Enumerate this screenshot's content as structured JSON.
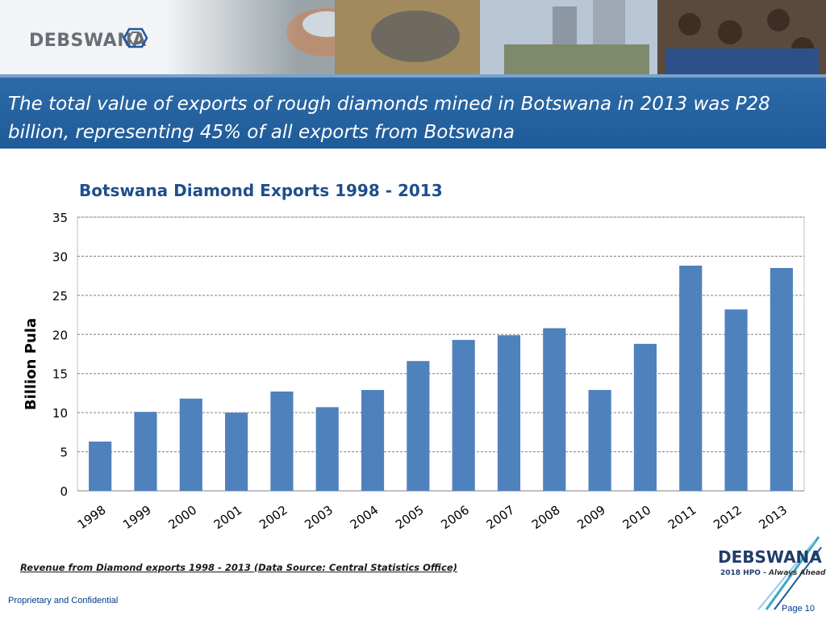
{
  "header": {
    "logo_text": "DEBSWANA"
  },
  "slide": {
    "title": "The total value of exports of rough diamonds mined in Botswana in 2013 was P28 billion, representing 45% of all exports from Botswana",
    "source_note": "Revenue from Diamond exports 1998 - 2013 (Data Source: Central Statistics Office)"
  },
  "footer": {
    "confidential": "Proprietary and Confidential",
    "page": "Page 10",
    "brand": "DEBSWANA",
    "brand_tagline": "2018 HPO - ",
    "brand_tagline_italic": "Always Ahead"
  },
  "colors": {
    "title_band": "#2563a5",
    "bar": "#4f81bd",
    "chart_title": "#1f4e8c"
  },
  "chart_data": {
    "type": "bar",
    "title": "Botswana Diamond Exports 1998 - 2013",
    "xlabel": "",
    "ylabel": "Billion Pula",
    "categories": [
      "1998",
      "1999",
      "2000",
      "2001",
      "2002",
      "2003",
      "2004",
      "2005",
      "2006",
      "2007",
      "2008",
      "2009",
      "2010",
      "2011",
      "2012",
      "2013"
    ],
    "values": [
      6.3,
      10.1,
      11.8,
      10.0,
      12.7,
      10.7,
      12.9,
      16.6,
      19.3,
      19.9,
      20.8,
      12.9,
      18.8,
      28.8,
      23.2,
      28.5
    ],
    "ylim": [
      0,
      35
    ],
    "yticks": [
      0,
      5,
      10,
      15,
      20,
      25,
      30,
      35
    ],
    "grid": true,
    "legend": "none"
  }
}
